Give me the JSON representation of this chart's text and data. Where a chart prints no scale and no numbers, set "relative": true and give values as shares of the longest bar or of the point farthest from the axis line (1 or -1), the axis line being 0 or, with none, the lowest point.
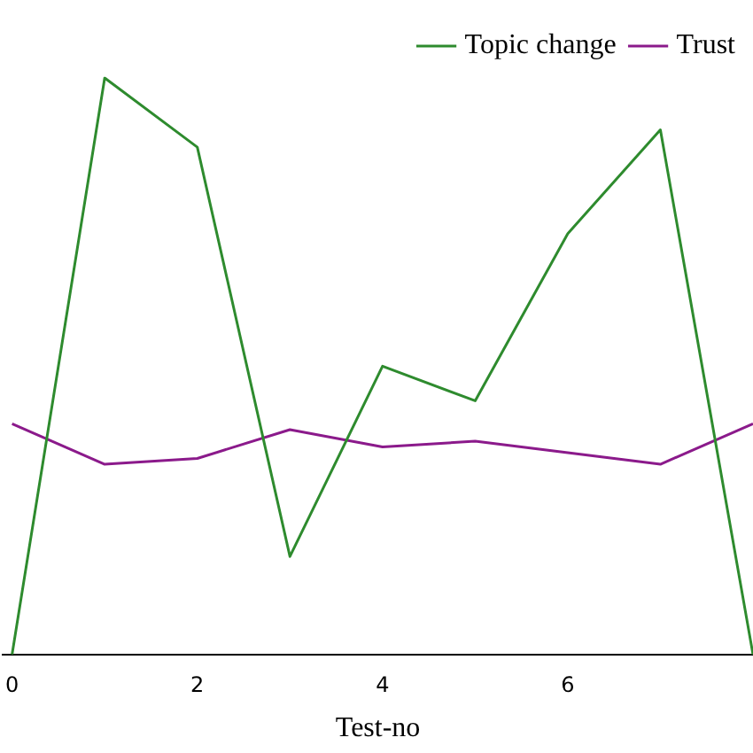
{
  "chart_data": {
    "type": "line",
    "xlabel": "Test-no",
    "x": [
      0,
      1,
      2,
      3,
      4,
      5,
      6,
      7,
      8
    ],
    "xlim": [
      -0.1,
      8
    ],
    "xticks": [
      0,
      2,
      4,
      6
    ],
    "relative": true,
    "grid": false,
    "legend": "top right",
    "marker": "none",
    "line_style": "solid",
    "series": [
      {
        "name": "Topic change",
        "color": "#2e8b2e",
        "values": [
          0,
          1,
          0.88,
          0.17,
          0.5,
          0.44,
          0.73,
          0.91,
          0
        ]
      },
      {
        "name": "Trust",
        "color": "#8b1a8b",
        "values": [
          0.4,
          0.33,
          0.34,
          0.39,
          0.36,
          0.37,
          0.35,
          0.33,
          0.4
        ]
      }
    ]
  }
}
